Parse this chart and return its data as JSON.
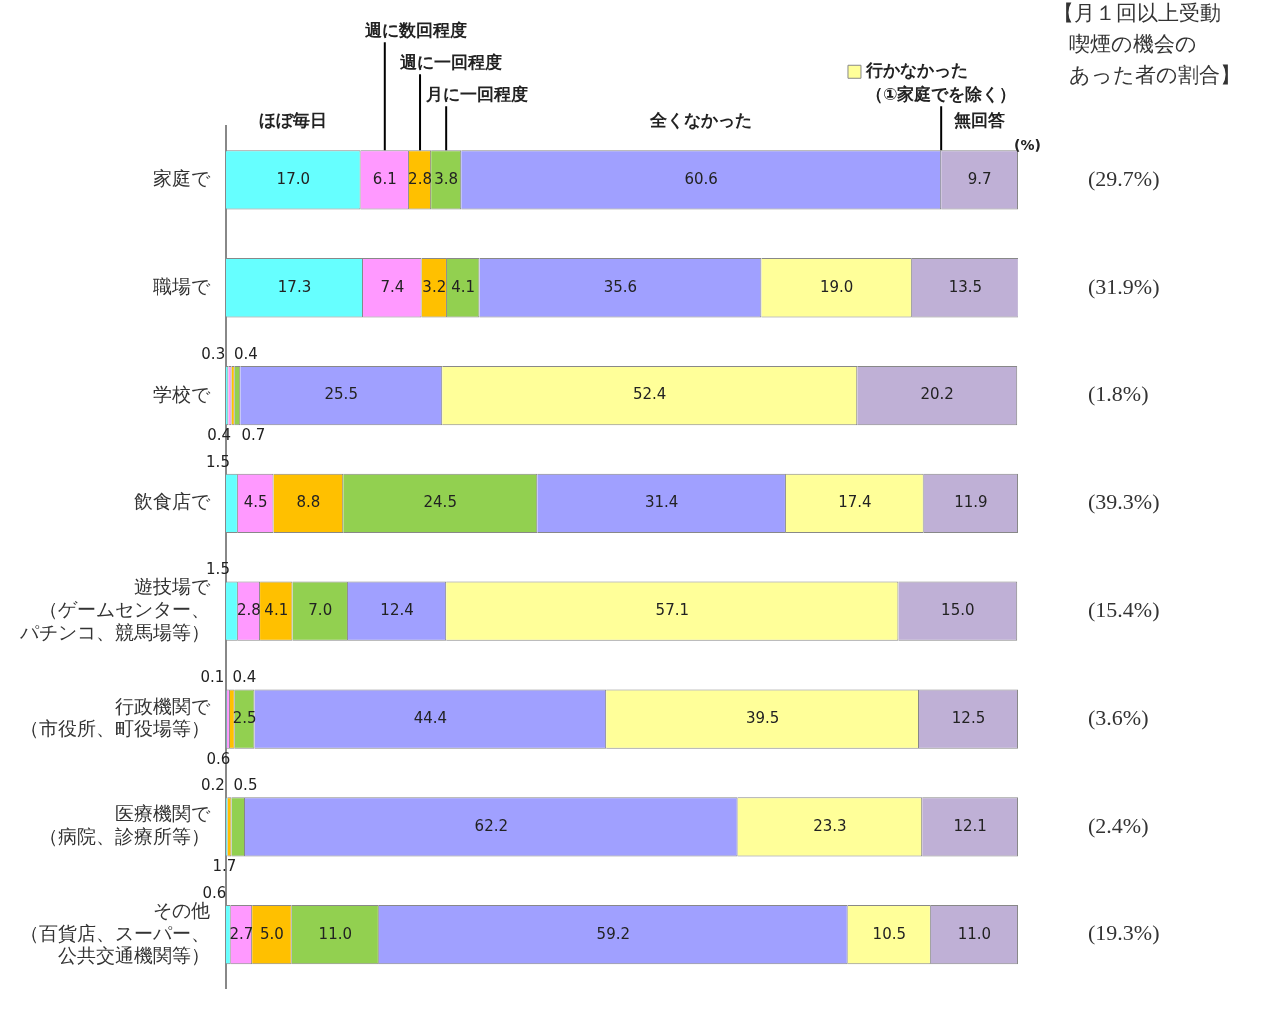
{
  "chart_data": {
    "type": "bar",
    "orientation": "horizontal",
    "stacked": true,
    "title": "【月１回以上受動喫煙の機会のあった者の割合】",
    "xlabel": "(%)",
    "categories": [
      "家庭で",
      "職場で",
      "学校で",
      "飲食店で",
      "遊技場で（ゲームセンター、パチンコ、競馬場等）",
      "行政機関で（市役所、町役場等）",
      "医療機関で（病院、診療所等）",
      "その他（百貨店、スーパー、公共交通機関等）"
    ],
    "xlim": [
      0,
      100
    ],
    "tick_labels": "y",
    "grid": false,
    "legend": "top",
    "series": [
      {
        "name": "ほぼ毎日",
        "color": "#66ffff",
        "values": [
          17.0,
          17.3,
          0.3,
          1.5,
          1.5,
          0.1,
          0.2,
          0.6
        ],
        "value_labels": [
          "17.0",
          "17.3",
          "0.3",
          "1.5",
          "1.5",
          "0.1",
          "0.2",
          "0.6"
        ]
      },
      {
        "name": "週に数回程度",
        "color": "#ff99ff",
        "values": [
          6.1,
          7.4,
          0.4,
          4.5,
          2.8,
          0.4,
          null,
          2.7
        ],
        "value_labels": [
          "6.1",
          "7.4",
          "0.4",
          "4.5",
          "2.8",
          "0.4",
          null,
          "2.7"
        ]
      },
      {
        "name": "週に一回程度",
        "color": "#ffc000",
        "values": [
          2.8,
          3.2,
          0.4,
          8.8,
          4.1,
          0.6,
          0.5,
          5.0
        ],
        "value_labels": [
          "2.8",
          "3.2",
          "0.4",
          "8.8",
          "4.1",
          "0.6",
          "0.5",
          "5.0"
        ]
      },
      {
        "name": "月に一回程度",
        "color": "#92d050",
        "values": [
          3.8,
          4.1,
          0.7,
          24.5,
          7.0,
          2.5,
          1.7,
          11.0
        ],
        "value_labels": [
          "3.8",
          "4.1",
          "0.7",
          "24.5",
          "7.0",
          "2.5",
          "1.7",
          "11.0"
        ]
      },
      {
        "name": "全くなかった",
        "color": "#a0a0ff",
        "values": [
          60.6,
          35.6,
          25.5,
          31.4,
          12.4,
          44.4,
          62.2,
          59.2
        ],
        "value_labels": [
          "60.6",
          "35.6",
          "25.5",
          "31.4",
          "12.4",
          "44.4",
          "62.2",
          "59.2"
        ]
      },
      {
        "name": "行かなかった（①家庭でを除く）",
        "color": "#ffff99",
        "values": [
          null,
          19.0,
          52.4,
          17.4,
          57.1,
          39.5,
          23.3,
          10.5
        ],
        "value_labels": [
          null,
          "19.0",
          "52.4",
          "17.4",
          "57.1",
          "39.5",
          "23.3",
          "10.5"
        ]
      },
      {
        "name": "無回答",
        "color": "#bfb0d6",
        "values": [
          9.7,
          13.5,
          20.2,
          11.9,
          15.0,
          12.5,
          12.1,
          11.0
        ],
        "value_labels": [
          "9.7",
          "13.5",
          "20.2",
          "11.9",
          "15.0",
          "12.5",
          "12.1",
          "11.0"
        ]
      }
    ],
    "annotations": [
      "(29.7%)",
      "(31.9%)",
      "(1.8%)",
      "(39.3%)",
      "(15.4%)",
      "(3.6%)",
      "(2.4%)",
      "(19.3%)"
    ]
  }
}
